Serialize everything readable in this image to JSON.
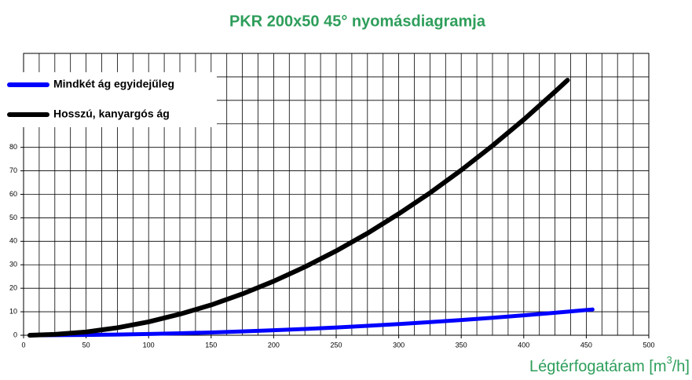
{
  "chart_data": {
    "type": "line",
    "title": "PKR 200x50 45° nyomásdiagramja",
    "xlabel": {
      "text": "Légtérfogatáram [m",
      "sup": "3",
      "end": "/h]"
    },
    "xlim": [
      0,
      500
    ],
    "xticks": [
      0,
      50,
      100,
      150,
      200,
      250,
      300,
      350,
      400,
      450,
      500
    ],
    "ylim": [
      0,
      120
    ],
    "yticks": [
      0,
      10,
      20,
      30,
      40,
      50,
      60,
      70,
      80
    ],
    "grid": true,
    "xgrid_step": 12.5,
    "ygrid_step": 10,
    "legend": "upper-left",
    "series": [
      {
        "name": "Mindkét ág egyidejűleg",
        "color": "#0000ff",
        "x": [
          5,
          25,
          50,
          75,
          100,
          125,
          150,
          175,
          200,
          225,
          250,
          275,
          300,
          325,
          350,
          375,
          400,
          425,
          450,
          455
        ],
        "values": [
          0,
          0.03,
          0.13,
          0.3,
          0.53,
          0.83,
          1.19,
          1.62,
          2.12,
          2.68,
          3.31,
          4.0,
          4.77,
          5.6,
          6.49,
          7.45,
          8.48,
          9.57,
          10.73,
          10.97
        ]
      },
      {
        "name": "Hosszú, kanyargós ág",
        "color": "#000000",
        "x": [
          5,
          25,
          50,
          75,
          100,
          125,
          150,
          175,
          200,
          225,
          250,
          275,
          300,
          325,
          350,
          375,
          400,
          425,
          435
        ],
        "values": [
          0,
          0.36,
          1.4,
          3.2,
          5.7,
          9.0,
          12.9,
          17.6,
          23.0,
          29.1,
          35.9,
          43.4,
          51.7,
          60.6,
          70.3,
          80.7,
          91.8,
          103.7,
          108.6
        ]
      }
    ]
  }
}
